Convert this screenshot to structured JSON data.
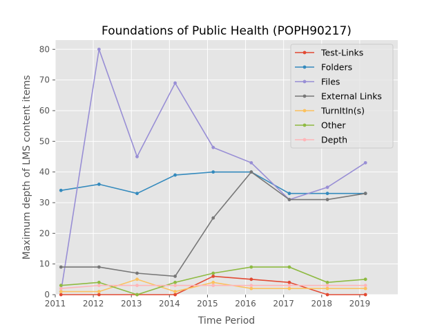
{
  "chart_data": {
    "type": "line",
    "title": "Foundations of Public Health (POPH90217)",
    "xlabel": "Time Period",
    "ylabel": "Maximum depth of LMS content items",
    "xlim": [
      2011,
      2020
    ],
    "ylim": [
      0,
      83
    ],
    "xticks": [
      "2011",
      "2012",
      "2013",
      "2014",
      "2015",
      "2016",
      "2017",
      "2018",
      "2019"
    ],
    "yticks": [
      "0",
      "10",
      "20",
      "30",
      "40",
      "50",
      "60",
      "70",
      "80"
    ],
    "grid": true,
    "legend_position": "top-right",
    "x": [
      2011.15,
      2012.15,
      2013.15,
      2014.15,
      2015.15,
      2016.15,
      2017.15,
      2018.15,
      2019.15
    ],
    "series": [
      {
        "name": "Test-Links",
        "color": "#E24A33",
        "values": [
          0,
          0,
          0,
          0,
          6,
          5,
          4,
          0,
          0
        ]
      },
      {
        "name": "Folders",
        "color": "#348ABD",
        "values": [
          34,
          36,
          33,
          39,
          40,
          40,
          33,
          33,
          33
        ]
      },
      {
        "name": "Files",
        "color": "#988ED5",
        "values": [
          1,
          80,
          45,
          69,
          48,
          43,
          31,
          35,
          43
        ]
      },
      {
        "name": "External Links",
        "color": "#777777",
        "values": [
          9,
          9,
          7,
          6,
          25,
          40,
          31,
          31,
          33
        ]
      },
      {
        "name": "TurnItIn(s)",
        "color": "#FBC15E",
        "values": [
          1,
          1,
          5,
          1,
          4,
          2,
          2,
          2,
          2
        ]
      },
      {
        "name": "Other",
        "color": "#8EBA42",
        "values": [
          3,
          4,
          0,
          4,
          7,
          9,
          9,
          4,
          5
        ]
      },
      {
        "name": "Depth",
        "color": "#FFB5B8",
        "values": [
          2,
          3,
          3,
          3,
          3,
          3,
          3,
          3,
          3
        ]
      }
    ]
  }
}
